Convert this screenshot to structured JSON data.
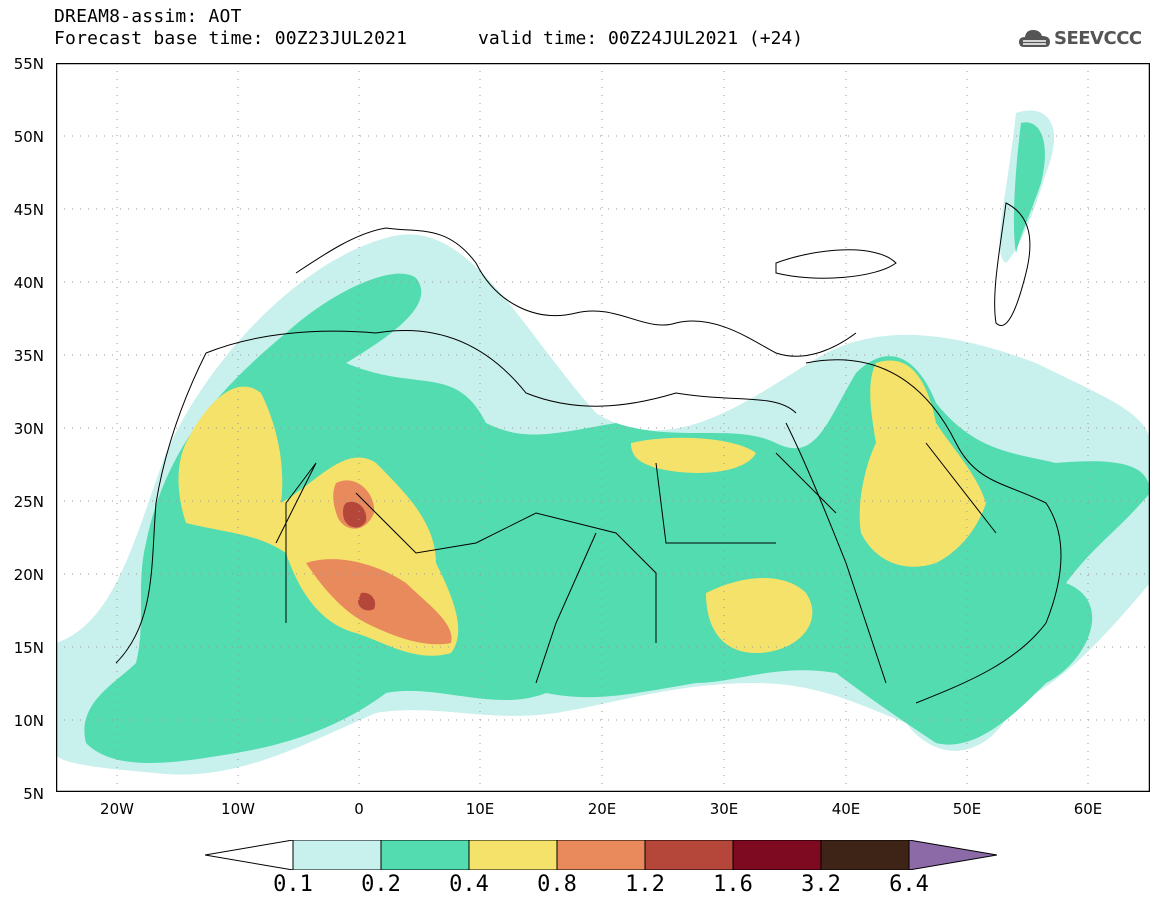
{
  "header": {
    "title_line1": "DREAM8-assim: AOT",
    "title_line2": "Forecast base time: 00Z23JUL2021",
    "valid_time": "valid time: 00Z24JUL2021 (+24)",
    "logo_text": "SEEVCCC",
    "logo_icon": "cloud-icon"
  },
  "map": {
    "variable": "AOT",
    "lat_labels": [
      "55N",
      "50N",
      "45N",
      "40N",
      "35N",
      "30N",
      "25N",
      "20N",
      "15N",
      "10N",
      "5N"
    ],
    "lon_labels": [
      "20W",
      "10W",
      "0",
      "10E",
      "20E",
      "30E",
      "40E",
      "50E",
      "60E"
    ]
  },
  "legend": {
    "values": [
      "0.1",
      "0.2",
      "0.4",
      "0.8",
      "1.2",
      "1.6",
      "3.2",
      "6.4"
    ],
    "colors": [
      "#ffffff",
      "#c8f0ec",
      "#52dcb0",
      "#f5e26a",
      "#e88a5c",
      "#b5473a",
      "#7d0a20",
      "#3d2416",
      "#8c6aa8"
    ]
  }
}
